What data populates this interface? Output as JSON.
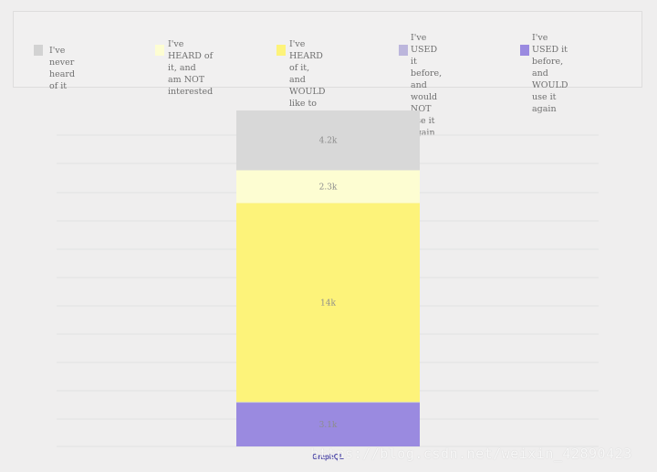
{
  "chart_data": {
    "type": "bar",
    "stacked": true,
    "categories": [
      "GraphQL"
    ],
    "series": [
      {
        "name": "I've USED it before, and WOULD use it again",
        "values": [
          3.1
        ],
        "label": "3.1k",
        "color": "#9a8ae0"
      },
      {
        "name": "I've HEARD of it, and WOULD like to learn it",
        "values": [
          14
        ],
        "label": "14k",
        "color": "#fdf37a"
      },
      {
        "name": "I've HEARD of it, and am NOT interested",
        "values": [
          2.3
        ],
        "label": "2.3k",
        "color": "#fdfdd2"
      },
      {
        "name": "I've never heard of it",
        "values": [
          4.2
        ],
        "label": "4.2k",
        "color": "#d8d8d8"
      }
    ],
    "legend_position": "top",
    "legend": [
      {
        "label": "I've never heard of it",
        "color": "#d2d2d2"
      },
      {
        "label": "I've HEARD of it, and\nam NOT interested",
        "color": "#fdfdd2"
      },
      {
        "label": "I've HEARD of it, and\nWOULD like to learn it",
        "color": "#fdf37a"
      },
      {
        "label": "I've USED it before,\nand would NOT use it\nagain",
        "color": "#bcb6dc"
      },
      {
        "label": "I've USED it before,\nand WOULD use it\nagain",
        "color": "#9a8ae0"
      }
    ]
  },
  "watermark": "https://blog.csdn.net/weixin_42890423"
}
